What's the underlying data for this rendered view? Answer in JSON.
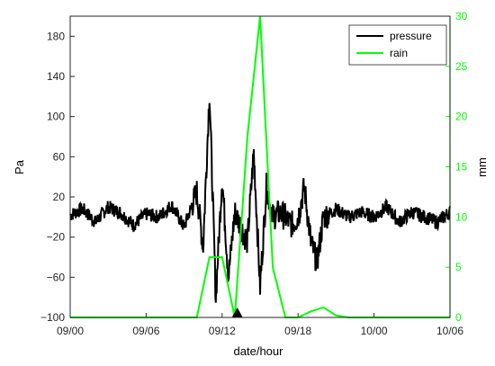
{
  "chart_data": {
    "type": "line",
    "xlabel": "date/hour",
    "ylabel_left": "Pa",
    "ylabel_right": "mm",
    "x_ticks": [
      "09/00",
      "09/06",
      "09/12",
      "09/18",
      "10/00",
      "10/06"
    ],
    "x_range": [
      "09/00",
      "10/06"
    ],
    "y_left_ticks": [
      "180",
      "140",
      "100",
      "60",
      "20",
      "−20",
      "−60",
      "−100"
    ],
    "y_left_range": [
      -100,
      200
    ],
    "y_right_ticks": [
      "30",
      "25",
      "20",
      "15",
      "10",
      "5",
      "0"
    ],
    "y_right_range": [
      0,
      30
    ],
    "legend_position": "top-right",
    "grid": false,
    "annotation": "triangle marker on x-axis at about 09/13",
    "marker_hour": 13.2,
    "series": [
      {
        "name": "pressure",
        "axis": "left",
        "color": "#000000",
        "x_hours": [
          0,
          1,
          2,
          3,
          4,
          5,
          6,
          7,
          8,
          9,
          10,
          10.5,
          11,
          11.5,
          12,
          12.5,
          13,
          14,
          14.5,
          15,
          15.5,
          16,
          16.5,
          17,
          17.5,
          18,
          18.5,
          19,
          19.5,
          20,
          21,
          22,
          23,
          24,
          25,
          26,
          27,
          28,
          29,
          30
        ],
        "values": [
          2,
          8,
          -5,
          10,
          4,
          -8,
          3,
          0,
          12,
          -10,
          25,
          -30,
          125,
          -80,
          40,
          -60,
          5,
          -25,
          65,
          -70,
          30,
          0,
          4,
          0,
          -8,
          0,
          30,
          -25,
          -45,
          0,
          8,
          0,
          5,
          0,
          10,
          -5,
          5,
          0,
          -5,
          5
        ]
      },
      {
        "name": "rain",
        "axis": "right",
        "color": "#00ff00",
        "x_hours": [
          0,
          10,
          11,
          12,
          13,
          14,
          15,
          16,
          17,
          18,
          19,
          20,
          21,
          22,
          30
        ],
        "values": [
          0,
          0,
          6,
          6,
          0,
          18,
          30,
          5,
          0,
          0,
          0.6,
          1,
          0.2,
          0,
          0
        ]
      }
    ]
  },
  "legend": {
    "items": [
      {
        "label": "pressure",
        "color": "#000000"
      },
      {
        "label": "rain",
        "color": "#00ff00"
      }
    ]
  }
}
